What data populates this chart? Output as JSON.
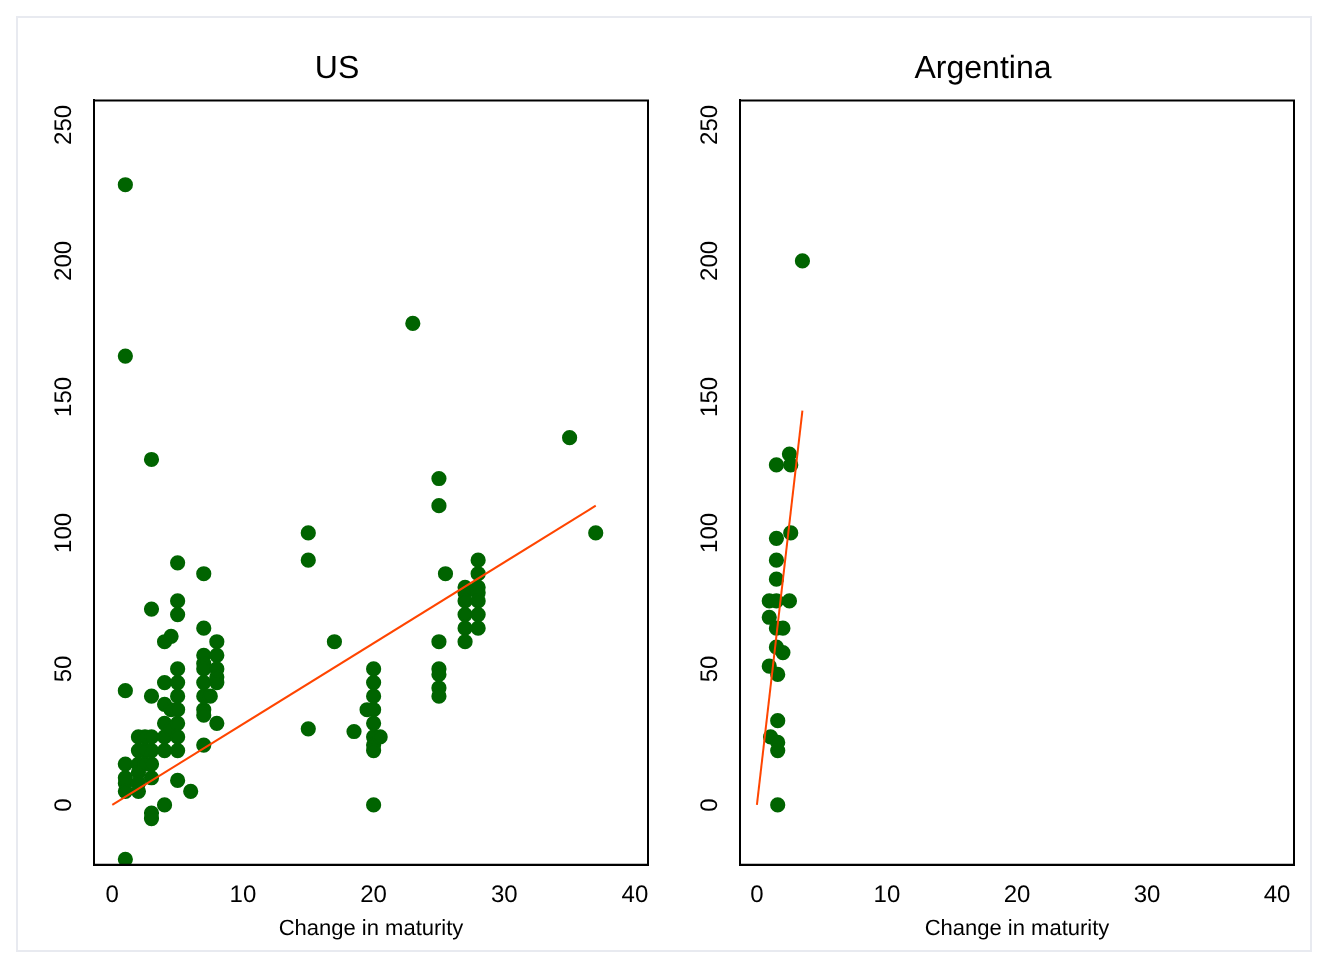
{
  "chart_data": [
    {
      "type": "scatter",
      "title": "US",
      "xlabel": "Change in maturity",
      "xlim": [
        -1.4,
        41
      ],
      "xticks": [
        0,
        10,
        20,
        30,
        40
      ],
      "ylim": [
        -22,
        259
      ],
      "yticks": [
        0,
        50,
        100,
        150,
        200,
        250
      ],
      "grid": false,
      "legend": false,
      "marker": "circle",
      "series": [
        {
          "color": "#006400",
          "x": [
            1,
            1,
            1,
            1,
            1,
            1,
            1,
            1,
            2,
            2,
            2,
            2,
            2,
            2,
            2.5,
            2.5,
            2.5,
            3,
            3,
            3,
            3,
            3,
            3,
            3,
            3,
            3,
            4,
            4,
            4,
            4,
            4,
            4,
            4,
            4.5,
            4.5,
            4.5,
            5,
            5,
            5,
            5,
            5,
            5,
            5,
            5,
            5,
            5,
            5,
            6,
            7,
            7,
            7,
            7,
            7,
            7,
            7,
            7,
            7,
            7,
            7.5,
            8,
            8,
            8,
            8,
            8,
            8,
            15,
            15,
            15,
            17,
            18.5,
            19.5,
            20,
            20,
            20,
            20,
            20,
            20,
            20,
            20,
            20,
            20.5,
            23,
            25,
            25,
            25,
            25,
            25,
            25,
            25,
            25.5,
            27,
            27,
            27,
            27,
            27,
            27,
            28,
            28,
            28,
            28,
            28,
            28,
            28,
            35,
            37
          ],
          "values": [
            228,
            165,
            42,
            15,
            10,
            8,
            5,
            -20,
            25,
            20,
            15,
            12,
            5,
            8,
            25,
            20,
            15,
            127,
            72,
            40,
            25,
            20,
            15,
            10,
            -3,
            -5,
            60,
            45,
            37,
            30,
            25,
            20,
            0,
            62,
            35,
            28,
            89,
            75,
            70,
            50,
            45,
            40,
            35,
            30,
            25,
            20,
            9,
            5,
            85,
            65,
            55,
            52,
            50,
            45,
            40,
            35,
            33,
            22,
            40,
            60,
            55,
            50,
            47,
            45,
            30,
            100,
            90,
            28,
            60,
            27,
            35,
            50,
            45,
            40,
            35,
            30,
            25,
            22,
            20,
            0,
            25,
            177,
            120,
            110,
            60,
            50,
            48,
            43,
            40,
            85,
            80,
            78,
            75,
            70,
            65,
            60,
            90,
            85,
            80,
            78,
            75,
            70,
            65,
            135,
            100
          ]
        },
        {
          "type": "line",
          "color": "#ff4500",
          "marker": "none",
          "x": [
            0,
            37
          ],
          "values": [
            0,
            110
          ]
        }
      ]
    },
    {
      "type": "scatter",
      "title": "Argentina",
      "xlabel": "Change in maturity",
      "xlim": [
        -1.3,
        41.3
      ],
      "xticks": [
        0,
        10,
        20,
        30,
        40
      ],
      "ylim": [
        -22,
        259
      ],
      "yticks": [
        0,
        50,
        100,
        150,
        200,
        250
      ],
      "grid": false,
      "legend": false,
      "marker": "circle",
      "series": [
        {
          "color": "#006400",
          "x": [
            3.5,
            1.5,
            2.5,
            2.6,
            1.5,
            2.6,
            1.5,
            1.5,
            0.95,
            1.5,
            2.5,
            0.95,
            2,
            1.5,
            1.5,
            2,
            0.95,
            1.6,
            1.6,
            1.05,
            1.6,
            1.6,
            1.6
          ],
          "values": [
            200,
            125,
            129,
            125,
            98,
            100,
            90,
            83,
            75,
            75,
            75,
            69,
            65,
            65,
            58,
            56,
            51,
            48,
            31,
            25,
            23,
            20,
            0
          ]
        },
        {
          "type": "line",
          "color": "#ff4500",
          "marker": "none",
          "x": [
            0,
            3.5
          ],
          "values": [
            0,
            145
          ]
        }
      ]
    }
  ]
}
